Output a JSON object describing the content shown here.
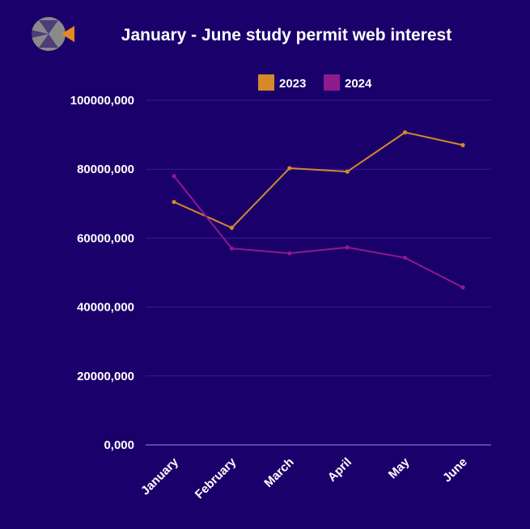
{
  "logo": {
    "name": "logo"
  },
  "chart_data": {
    "type": "line",
    "title": "January - June study permit web interest",
    "categories": [
      "January",
      "February",
      "March",
      "April",
      "May",
      "June"
    ],
    "series": [
      {
        "name": "2023",
        "color": "#d4892a",
        "values": [
          70500000,
          63000000,
          80300000,
          79300000,
          90700000,
          87000000
        ]
      },
      {
        "name": "2024",
        "color": "#8e1a8e",
        "values": [
          78000000,
          57000000,
          55600000,
          57300000,
          54300000,
          45700000
        ]
      }
    ],
    "y_ticks": [
      0,
      20000000,
      40000000,
      60000000,
      80000000,
      100000000
    ],
    "y_tick_labels": [
      "0,000",
      "20000,000",
      "40000,000",
      "60000,000",
      "80000,000",
      "100000,000"
    ],
    "ylim": [
      0,
      100000000
    ],
    "legend_position": "top",
    "grid": true,
    "axis_color": "#6b5bd6",
    "grid_color": "#3a1a9a"
  }
}
